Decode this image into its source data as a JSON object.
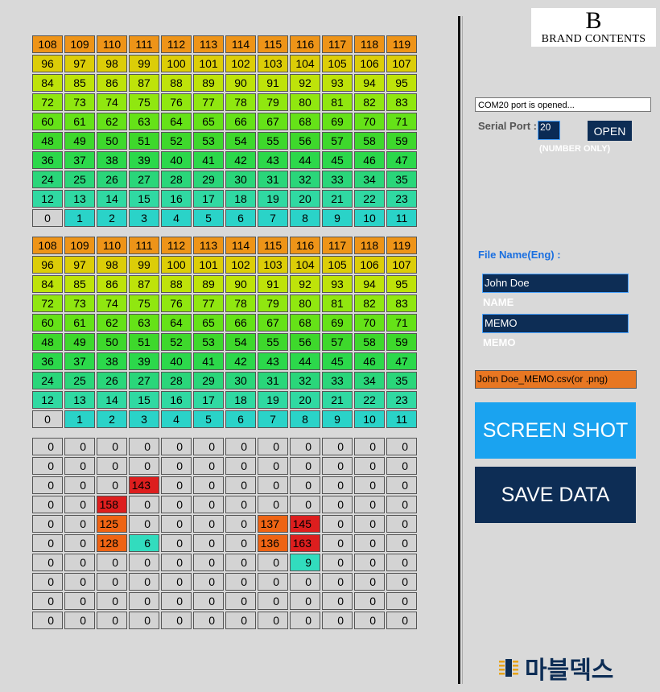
{
  "colors": {
    "legend_rows": [
      "#ee9418",
      "#dccd08",
      "#bee30a",
      "#90e710",
      "#65e218",
      "#3ed82c",
      "#2cd84b",
      "#2ad67a",
      "#30d9a2",
      "#2cdcc8"
    ],
    "last_row_accent": "#2ad3c8",
    "zero_cell": "#d3d3d3",
    "value_red": "#dd1e1e",
    "value_orange": "#ee6414",
    "value_teal": "#32dcbe",
    "accent_blue": "#1aa3f0",
    "navy": "#0d2d55",
    "orange": "#e87722"
  },
  "legend_rows": [
    [
      "108",
      "109",
      "110",
      "111",
      "112",
      "113",
      "114",
      "115",
      "116",
      "117",
      "118",
      "119"
    ],
    [
      "96",
      "97",
      "98",
      "99",
      "100",
      "101",
      "102",
      "103",
      "104",
      "105",
      "106",
      "107"
    ],
    [
      "84",
      "85",
      "86",
      "87",
      "88",
      "89",
      "90",
      "91",
      "92",
      "93",
      "94",
      "95"
    ],
    [
      "72",
      "73",
      "74",
      "75",
      "76",
      "77",
      "78",
      "79",
      "80",
      "81",
      "82",
      "83"
    ],
    [
      "60",
      "61",
      "62",
      "63",
      "64",
      "65",
      "66",
      "67",
      "68",
      "69",
      "70",
      "71"
    ],
    [
      "48",
      "49",
      "50",
      "51",
      "52",
      "53",
      "54",
      "55",
      "56",
      "57",
      "58",
      "59"
    ],
    [
      "36",
      "37",
      "38",
      "39",
      "40",
      "41",
      "42",
      "43",
      "44",
      "45",
      "46",
      "47"
    ],
    [
      "24",
      "25",
      "26",
      "27",
      "28",
      "29",
      "30",
      "31",
      "32",
      "33",
      "34",
      "35"
    ],
    [
      "12",
      "13",
      "14",
      "15",
      "16",
      "17",
      "18",
      "19",
      "20",
      "21",
      "22",
      "23"
    ],
    [
      "0",
      "1",
      "2",
      "3",
      "4",
      "5",
      "6",
      "7",
      "8",
      "9",
      "10",
      "11"
    ]
  ],
  "sensor_rows": [
    [
      "0",
      "0",
      "0",
      "0",
      "0",
      "0",
      "0",
      "0",
      "0",
      "0",
      "0",
      "0"
    ],
    [
      "0",
      "0",
      "0",
      "0",
      "0",
      "0",
      "0",
      "0",
      "0",
      "0",
      "0",
      "0"
    ],
    [
      "0",
      "0",
      "0",
      "143",
      "0",
      "0",
      "0",
      "0",
      "0",
      "0",
      "0",
      "0"
    ],
    [
      "0",
      "0",
      "158",
      "0",
      "0",
      "0",
      "0",
      "0",
      "0",
      "0",
      "0",
      "0"
    ],
    [
      "0",
      "0",
      "125",
      "0",
      "0",
      "0",
      "0",
      "137",
      "145",
      "0",
      "0",
      "0"
    ],
    [
      "0",
      "0",
      "128",
      "6",
      "0",
      "0",
      "0",
      "136",
      "163",
      "0",
      "0",
      "0"
    ],
    [
      "0",
      "0",
      "0",
      "0",
      "0",
      "0",
      "0",
      "0",
      "9",
      "0",
      "0",
      "0"
    ],
    [
      "0",
      "0",
      "0",
      "0",
      "0",
      "0",
      "0",
      "0",
      "0",
      "0",
      "0",
      "0"
    ],
    [
      "0",
      "0",
      "0",
      "0",
      "0",
      "0",
      "0",
      "0",
      "0",
      "0",
      "0",
      "0"
    ],
    [
      "0",
      "0",
      "0",
      "0",
      "0",
      "0",
      "0",
      "0",
      "0",
      "0",
      "0",
      "0"
    ]
  ],
  "logo": {
    "letter": "B",
    "text": "BRAND CONTENTS"
  },
  "status_text": "COM20 port is opened...",
  "serial": {
    "label": "Serial Port :",
    "value": "20",
    "open_label": "OPEN",
    "hint": "(NUMBER ONLY)"
  },
  "file": {
    "label": "File Name(Eng) :",
    "name_value": "John Doe",
    "name_caption": "NAME",
    "memo_value": "MEMO",
    "memo_caption": "MEMO",
    "output": "John Doe_MEMO.csv(or .png)"
  },
  "buttons": {
    "screenshot": "SCREEN SHOT",
    "save": "SAVE DATA"
  },
  "brand_text": "마블덱스",
  "brand_icon": "chip-icon"
}
